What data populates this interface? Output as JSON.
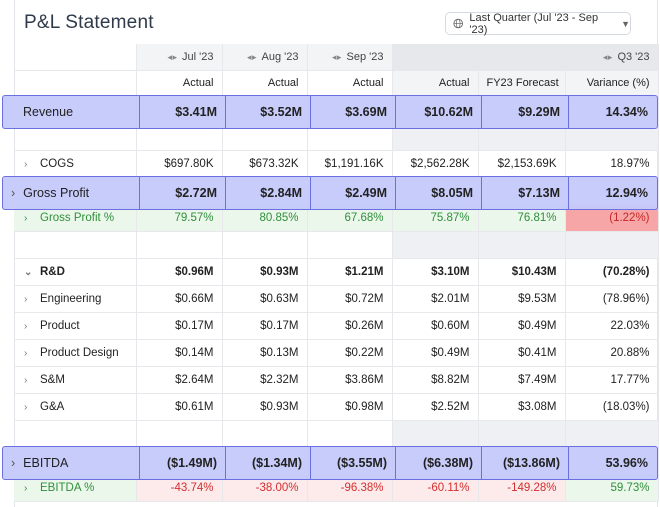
{
  "title": "P&L Statement",
  "period": "Last Quarter (Jul '23 - Sep '23)",
  "columns": {
    "months": [
      "Jul '23",
      "Aug '23",
      "Sep '23"
    ],
    "quarter": "Q3 '23",
    "subheaders": [
      "Actual",
      "Actual",
      "Actual",
      "Actual",
      "FY23 Forecast",
      "Variance (%)"
    ]
  },
  "rows": {
    "revenue": {
      "label": "Revenue",
      "values": [
        "$3.41M",
        "$3.52M",
        "$3.69M",
        "$10.62M",
        "$9.29M",
        "14.34%"
      ]
    },
    "cogs": {
      "label": "COGS",
      "values": [
        "$697.80K",
        "$673.32K",
        "$1,191.16K",
        "$2,562.28K",
        "$2,153.69K",
        "18.97%"
      ]
    },
    "gross_profit": {
      "label": "Gross Profit",
      "values": [
        "$2.72M",
        "$2.84M",
        "$2.49M",
        "$8.05M",
        "$7.13M",
        "12.94%"
      ]
    },
    "gross_profit_pct": {
      "label": "Gross Profit %",
      "values": [
        "79.57%",
        "80.85%",
        "67.68%",
        "75.87%",
        "76.81%",
        "(1.22%)"
      ]
    },
    "rd": {
      "label": "R&D",
      "values": [
        "$0.96M",
        "$0.93M",
        "$1.21M",
        "$3.10M",
        "$10.43M",
        "(70.28%)"
      ]
    },
    "engineering": {
      "label": "Engineering",
      "values": [
        "$0.66M",
        "$0.63M",
        "$0.72M",
        "$2.01M",
        "$9.53M",
        "(78.96%)"
      ]
    },
    "product": {
      "label": "Product",
      "values": [
        "$0.17M",
        "$0.17M",
        "$0.26M",
        "$0.60M",
        "$0.49M",
        "22.03%"
      ]
    },
    "product_design": {
      "label": "Product Design",
      "values": [
        "$0.14M",
        "$0.13M",
        "$0.22M",
        "$0.49M",
        "$0.41M",
        "20.88%"
      ]
    },
    "sm": {
      "label": "S&M",
      "values": [
        "$2.64M",
        "$2.32M",
        "$3.86M",
        "$8.82M",
        "$7.49M",
        "17.77%"
      ]
    },
    "ga": {
      "label": "G&A",
      "values": [
        "$0.61M",
        "$0.93M",
        "$0.98M",
        "$2.52M",
        "$3.08M",
        "(18.03%)"
      ]
    },
    "ebitda": {
      "label": "EBITDA",
      "values": [
        "($1.49M)",
        "($1.34M)",
        "($3.55M)",
        "($6.38M)",
        "($13.86M)",
        "53.96%"
      ]
    },
    "ebitda_pct": {
      "label": "EBITDA %",
      "values": [
        "-43.74%",
        "-38.00%",
        "-96.38%",
        "-60.11%",
        "-149.28%",
        "59.73%"
      ]
    }
  },
  "colors": {
    "highlight": "#c4c9fa",
    "highlight_border": "#6b6fe0",
    "positive": "#2f8f3b",
    "negative": "#d32f2f"
  }
}
